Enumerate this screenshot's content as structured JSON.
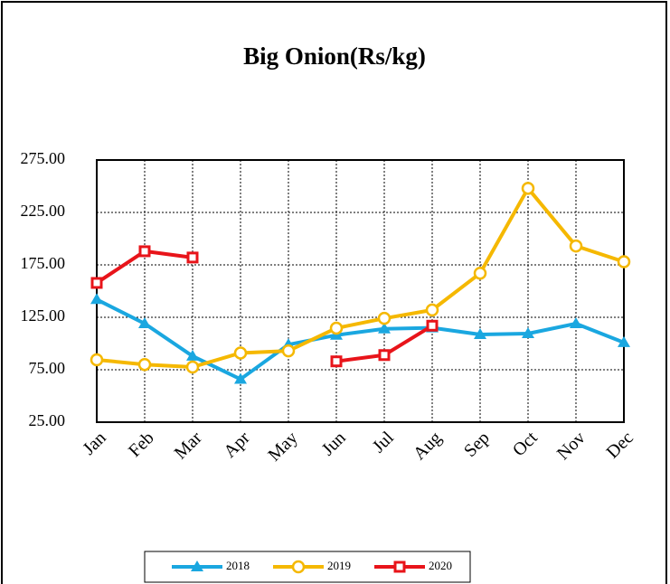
{
  "chart_data": {
    "type": "line",
    "title": "Big Onion(Rs/kg)",
    "categories": [
      "Jan",
      "Feb",
      "Mar",
      "Apr",
      "May",
      "Jun",
      "Jul",
      "Aug",
      "Sep",
      "Oct",
      "Nov",
      "Dec"
    ],
    "series": [
      {
        "name": "2018",
        "color": "#1aa7e0",
        "marker": "triangle",
        "values": [
          142,
          119,
          88,
          66,
          99,
          108,
          114,
          115,
          108.6,
          109.5,
          119,
          101
        ]
      },
      {
        "name": "2019",
        "color": "#f5b800",
        "marker": "circle",
        "values": [
          84.5,
          80,
          77.6,
          91,
          93,
          114.7,
          124,
          132,
          167,
          248,
          193,
          178
        ]
      },
      {
        "name": "2020",
        "color": "#e8141a",
        "marker": "square",
        "values": [
          157.8,
          188,
          182,
          null,
          null,
          83,
          89,
          117,
          null,
          null,
          null,
          null
        ]
      }
    ],
    "ylim": [
      25,
      275
    ],
    "yticks": [
      {
        "value": 25,
        "label": "25.00"
      },
      {
        "value": 75,
        "label": "75.00"
      },
      {
        "value": 125,
        "label": "125.00"
      },
      {
        "value": 175,
        "label": "175.00"
      },
      {
        "value": 225,
        "label": "225.00"
      },
      {
        "value": 275,
        "label": "275.00"
      }
    ],
    "grid": true,
    "legend": "bottom"
  }
}
